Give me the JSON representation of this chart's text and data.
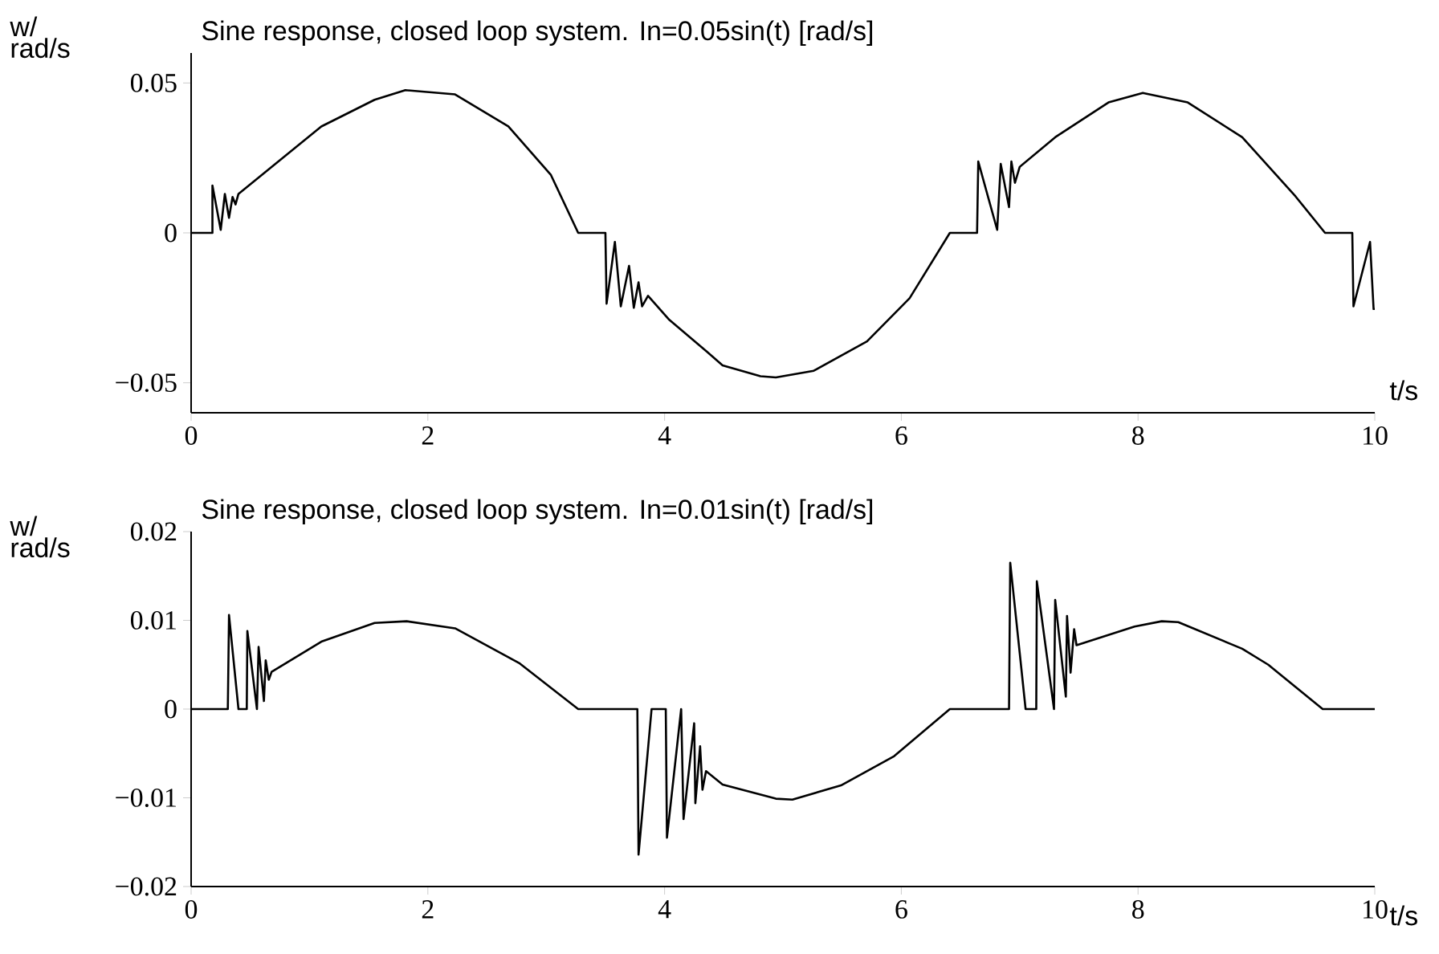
{
  "chart_data": [
    {
      "type": "line",
      "title": "Sine response, closed loop system. In=0.05sin(t) [rad/s]",
      "xlabel": "t/s",
      "ylabel": "w/ rad/s",
      "color": "#000000",
      "x": [
        0,
        0.18,
        0.18,
        0.25,
        0.285,
        0.32,
        0.35,
        0.375,
        0.4,
        0.65,
        1.1,
        1.55,
        1.81,
        2.23,
        2.68,
        3.04,
        3.27,
        3.5,
        3.51,
        3.58,
        3.63,
        3.7,
        3.74,
        3.78,
        3.81,
        3.86,
        4.04,
        4.36,
        4.49,
        4.81,
        4.94,
        5.26,
        5.71,
        6.07,
        6.41,
        6.64,
        6.65,
        6.81,
        6.84,
        6.91,
        6.93,
        6.96,
        7.0,
        7.3,
        7.75,
        8.04,
        8.42,
        8.88,
        9.33,
        9.58,
        9.81,
        9.82,
        9.96,
        9.99,
        10
      ],
      "values": [
        0,
        0,
        0.0158,
        0.001,
        0.013,
        0.005,
        0.012,
        0.0095,
        0.013,
        0.021,
        0.0355,
        0.0444,
        0.0476,
        0.0462,
        0.0355,
        0.0193,
        0,
        0,
        -0.0236,
        -0.003,
        -0.0245,
        -0.011,
        -0.025,
        -0.0165,
        -0.0245,
        -0.021,
        -0.029,
        -0.0397,
        -0.0442,
        -0.0478,
        -0.0482,
        -0.046,
        -0.0362,
        -0.0218,
        0,
        0,
        0.0238,
        0.001,
        0.023,
        0.0086,
        0.0238,
        0.0167,
        0.022,
        0.0319,
        0.0435,
        0.0467,
        0.0435,
        0.0319,
        0.0122,
        0,
        0,
        -0.0245,
        -0.003,
        -0.0254,
        -0.0254
      ],
      "xlim": [
        0,
        10
      ],
      "ylim": [
        -0.06,
        0.06
      ],
      "xticks": [
        0,
        2,
        4,
        6,
        8,
        10
      ],
      "yticks": [
        {
          "value": -0.05,
          "label": "−0.05"
        },
        0,
        0.05
      ]
    },
    {
      "type": "line",
      "title": "Sine response, closed loop system. In=0.01sin(t) [rad/s]",
      "xlabel": "t/s",
      "ylabel": "w/ rad/s",
      "color": "#000000",
      "x": [
        0,
        0.31,
        0.32,
        0.4,
        0.47,
        0.475,
        0.556,
        0.57,
        0.615,
        0.63,
        0.656,
        0.68,
        1.1,
        1.55,
        1.82,
        2.23,
        2.77,
        3.27,
        3.77,
        3.78,
        3.89,
        4.01,
        4.02,
        4.14,
        4.16,
        4.25,
        4.26,
        4.3,
        4.32,
        4.35,
        4.49,
        4.94,
        5.08,
        5.49,
        5.94,
        6.41,
        6.91,
        6.92,
        7.05,
        7.14,
        7.145,
        7.29,
        7.3,
        7.39,
        7.4,
        7.43,
        7.46,
        7.48,
        7.97,
        8.2,
        8.34,
        8.88,
        9.1,
        9.56,
        10
      ],
      "values": [
        0,
        0,
        0.0106,
        0,
        0,
        0.0088,
        0,
        0.007,
        0.0009,
        0.0055,
        0.0033,
        0.0042,
        0.0076,
        0.0097,
        0.0099,
        0.0091,
        0.0052,
        0,
        0,
        -0.0164,
        0,
        0,
        -0.0145,
        0,
        -0.0124,
        -0.0016,
        -0.0106,
        -0.0042,
        -0.0091,
        -0.007,
        -0.0085,
        -0.0101,
        -0.0102,
        -0.0086,
        -0.0053,
        0,
        0,
        0.0165,
        0,
        0,
        0.0144,
        0,
        0.0123,
        0.0014,
        0.0105,
        0.0041,
        0.009,
        0.0072,
        0.0093,
        0.0099,
        0.0098,
        0.0068,
        0.005,
        0,
        0
      ],
      "xlim": [
        0,
        10
      ],
      "ylim": [
        -0.02,
        0.02
      ],
      "xticks": [
        0,
        2,
        4,
        6,
        8,
        10
      ],
      "yticks": [
        {
          "value": -0.02,
          "label": "−0.02"
        },
        {
          "value": -0.01,
          "label": "−0.01"
        },
        0,
        0.01,
        0.02
      ]
    }
  ]
}
